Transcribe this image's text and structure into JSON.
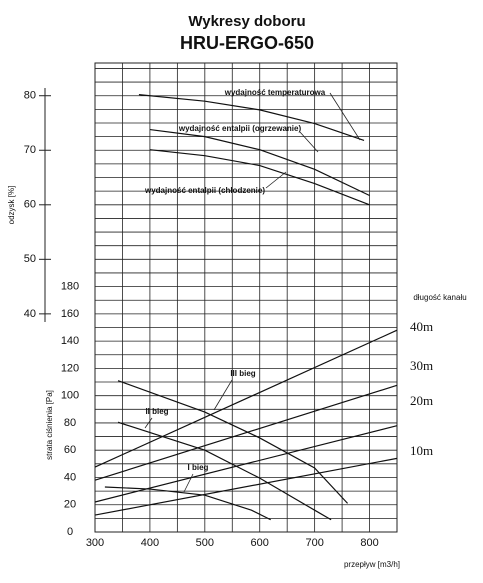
{
  "chart_data": {
    "type": "line",
    "title": "Wykresy doboru",
    "subtitle": "HRU-ERGO-650",
    "x_label": "przepływ [m3/h]",
    "y_label": "odzysk [%]",
    "y2_label": "strata ciśnienia [Pa]",
    "annotation": "długość kanału",
    "xlim": [
      300,
      850
    ],
    "xticks": [
      300,
      400,
      500,
      600,
      700,
      800
    ],
    "xminor": [
      350,
      450,
      550,
      650,
      750,
      850
    ],
    "ylim": [
      0,
      86
    ],
    "yticks": [
      40,
      50,
      60,
      70,
      80
    ],
    "y2lim": [
      0,
      344
    ],
    "y2ticks": [
      0,
      20,
      40,
      60,
      80,
      100,
      120,
      140,
      160,
      180
    ],
    "y2minor": [
      10,
      30,
      50,
      70,
      90,
      110,
      130,
      150,
      170,
      190,
      200,
      210,
      220,
      230,
      240,
      250,
      260,
      270,
      280,
      290,
      300,
      310,
      320,
      330,
      340
    ],
    "grid": true,
    "series": [
      {
        "name": "wydajność temperaturowa",
        "color": "#111",
        "axis": "y",
        "x": [
          380,
          500,
          600,
          700,
          790
        ],
        "values": [
          80.2,
          79,
          77.4,
          74.9,
          71.8
        ]
      },
      {
        "name": "wydajność entalpii (ogrzewanie)",
        "color": "#111",
        "axis": "y",
        "x": [
          400,
          500,
          600,
          700,
          800
        ],
        "values": [
          73.8,
          72.5,
          70.1,
          66.5,
          61.7
        ]
      },
      {
        "name": "wydajność entalpii (chłodzenie)",
        "color": "#111",
        "axis": "y",
        "x": [
          400,
          500,
          600,
          700,
          800
        ],
        "values": [
          70.1,
          69,
          67.2,
          63.9,
          60
        ]
      },
      {
        "name": "40m",
        "color": "#111",
        "axis": "y2",
        "x": [
          300,
          850
        ],
        "values": [
          47.6,
          148
        ]
      },
      {
        "name": "30m",
        "color": "#111",
        "axis": "y2",
        "x": [
          300,
          850
        ],
        "values": [
          38,
          107.6
        ]
      },
      {
        "name": "20m",
        "color": "#111",
        "axis": "y2",
        "x": [
          300,
          850
        ],
        "values": [
          22,
          78
        ]
      },
      {
        "name": "10m",
        "color": "#111",
        "axis": "y2",
        "x": [
          300,
          850
        ],
        "values": [
          12.4,
          54
        ]
      },
      {
        "name": "III bieg",
        "color": "#111",
        "axis": "y2",
        "x": [
          342,
          500,
          600,
          700,
          760
        ],
        "values": [
          111,
          88,
          69,
          47,
          21
        ]
      },
      {
        "name": "II bieg",
        "color": "#111",
        "axis": "y2",
        "x": [
          342,
          500,
          600,
          700,
          730
        ],
        "values": [
          80.5,
          60,
          39.5,
          16,
          9
        ]
      },
      {
        "name": "I bieg",
        "color": "#111",
        "axis": "y2",
        "x": [
          318,
          400,
          500,
          585,
          620
        ],
        "values": [
          33,
          31.5,
          27,
          16,
          9
        ]
      }
    ]
  }
}
